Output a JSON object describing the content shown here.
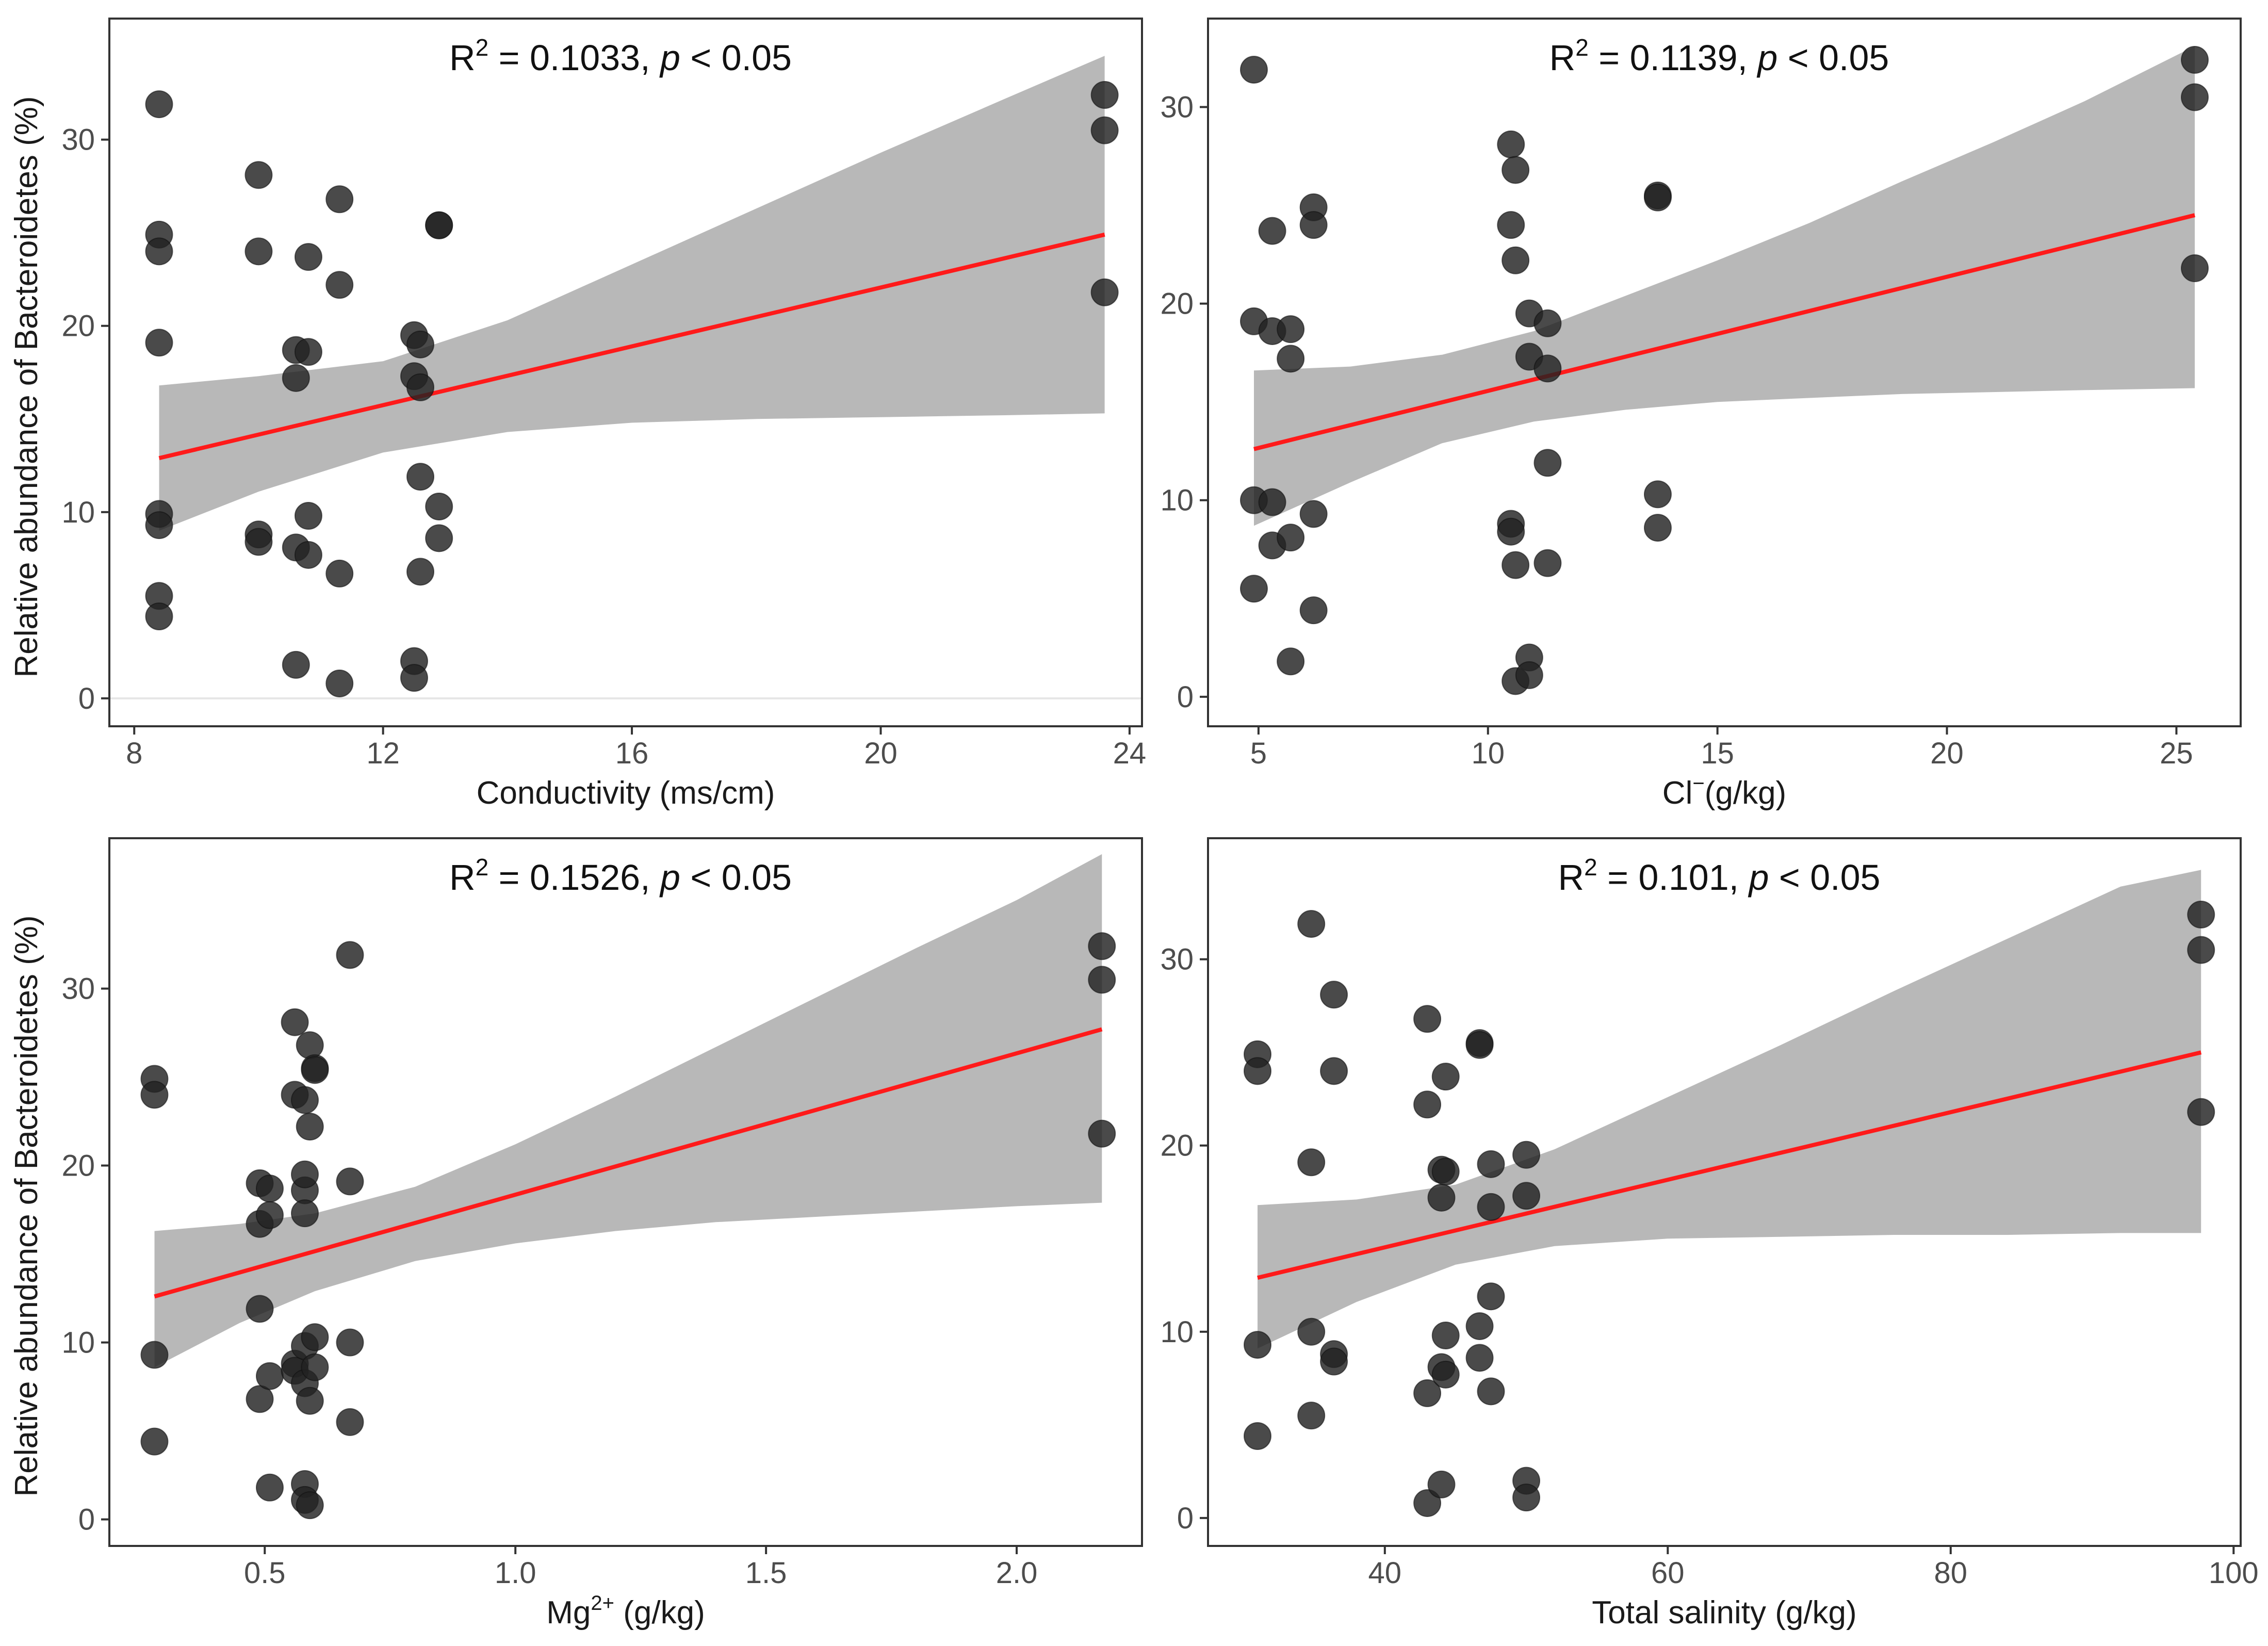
{
  "figure": {
    "y_axis_label": "Relative abundance of Bacteroidetes (%)"
  },
  "colors": {
    "point_fill": "#222222",
    "point_fill_light": "#5e5e5e",
    "fit_line": "#ff1a1a",
    "ci_band": "#b4b4b4",
    "panel_border": "#333333"
  },
  "chart_data": [
    {
      "type": "scatter",
      "panel": "top-left",
      "stat": {
        "r2_prefix": "R",
        "r2_sup": "2",
        "r2_value": "= 0.1033,",
        "p_symbol": "p",
        "p_value": "< 0.05"
      },
      "xlabel": {
        "main": "Conductivity (ms/cm)",
        "sup": ""
      },
      "ylabel": "Relative abundance of Bacteroidetes (%)",
      "xlim": [
        7.6,
        24.2
      ],
      "ylim": [
        -1.5,
        36.5
      ],
      "xticks": [
        8,
        12,
        16,
        20,
        24
      ],
      "xtick_labels": [
        "8",
        "12",
        "16",
        "20",
        "24"
      ],
      "yticks": [
        0,
        10,
        20,
        30
      ],
      "ytick_labels": [
        "0",
        "10",
        "20",
        "30"
      ],
      "fit": {
        "x": [
          8.4,
          23.6
        ],
        "y": [
          12.9,
          24.9
        ]
      },
      "ci": {
        "x": [
          8.4,
          10,
          12,
          14,
          16,
          18,
          20,
          22,
          23.6
        ],
        "lower": [
          9.0,
          11.1,
          13.2,
          14.3,
          14.8,
          15.0,
          15.1,
          15.2,
          15.3
        ],
        "upper": [
          16.8,
          17.3,
          18.1,
          20.3,
          23.3,
          26.3,
          29.3,
          32.2,
          34.5
        ]
      },
      "points": [
        {
          "x": 8.4,
          "y": 31.9
        },
        {
          "x": 8.4,
          "y": 24.9
        },
        {
          "x": 8.4,
          "y": 24.0
        },
        {
          "x": 8.4,
          "y": 19.1
        },
        {
          "x": 8.4,
          "y": 9.9
        },
        {
          "x": 8.4,
          "y": 9.3
        },
        {
          "x": 8.4,
          "y": 5.5
        },
        {
          "x": 8.4,
          "y": 4.4
        },
        {
          "x": 10.0,
          "y": 28.1
        },
        {
          "x": 10.0,
          "y": 24.0
        },
        {
          "x": 10.0,
          "y": 8.8
        },
        {
          "x": 10.0,
          "y": 8.4
        },
        {
          "x": 10.6,
          "y": 18.7
        },
        {
          "x": 10.6,
          "y": 17.2
        },
        {
          "x": 10.6,
          "y": 8.1
        },
        {
          "x": 10.6,
          "y": 1.8
        },
        {
          "x": 10.8,
          "y": 23.7
        },
        {
          "x": 10.8,
          "y": 18.6
        },
        {
          "x": 10.8,
          "y": 9.8
        },
        {
          "x": 10.8,
          "y": 7.7
        },
        {
          "x": 11.3,
          "y": 26.8
        },
        {
          "x": 11.3,
          "y": 22.2
        },
        {
          "x": 11.3,
          "y": 6.7
        },
        {
          "x": 11.3,
          "y": 0.8
        },
        {
          "x": 12.5,
          "y": 19.5
        },
        {
          "x": 12.5,
          "y": 17.3
        },
        {
          "x": 12.5,
          "y": 2.0
        },
        {
          "x": 12.5,
          "y": 1.1
        },
        {
          "x": 12.6,
          "y": 19.0
        },
        {
          "x": 12.6,
          "y": 16.7
        },
        {
          "x": 12.6,
          "y": 11.9
        },
        {
          "x": 12.6,
          "y": 6.8
        },
        {
          "x": 12.9,
          "y": 25.4
        },
        {
          "x": 12.9,
          "y": 25.4
        },
        {
          "x": 12.9,
          "y": 10.3
        },
        {
          "x": 12.9,
          "y": 8.6
        },
        {
          "x": 23.6,
          "y": 32.4
        },
        {
          "x": 23.6,
          "y": 30.5
        },
        {
          "x": 23.6,
          "y": 21.8
        }
      ]
    },
    {
      "type": "scatter",
      "panel": "top-right",
      "stat": {
        "r2_prefix": "R",
        "r2_sup": "2",
        "r2_value": "= 0.1139,",
        "p_symbol": "p",
        "p_value": "< 0.05"
      },
      "xlabel": {
        "main": "Cl",
        "sup": "−",
        "rest": "(g/kg)"
      },
      "ylabel": "",
      "xlim": [
        3.9,
        26.4
      ],
      "ylim": [
        -1.5,
        34.5
      ],
      "xticks": [
        5,
        10,
        15,
        20,
        25
      ],
      "xtick_labels": [
        "5",
        "10",
        "15",
        "20",
        "25"
      ],
      "yticks": [
        0,
        10,
        20,
        30
      ],
      "ytick_labels": [
        "0",
        "10",
        "20",
        "30"
      ],
      "fit": {
        "x": [
          4.9,
          25.4
        ],
        "y": [
          12.6,
          24.5
        ]
      },
      "ci": {
        "x": [
          4.9,
          7,
          9,
          11,
          13,
          15,
          17,
          19,
          21,
          23,
          25.4
        ],
        "lower": [
          8.7,
          10.9,
          12.9,
          14.0,
          14.6,
          15.0,
          15.2,
          15.4,
          15.5,
          15.6,
          15.7
        ],
        "upper": [
          16.6,
          16.8,
          17.4,
          18.6,
          20.4,
          22.2,
          24.1,
          26.2,
          28.2,
          30.3,
          33.1
        ]
      },
      "points": [
        {
          "x": 4.9,
          "y": 31.9
        },
        {
          "x": 4.9,
          "y": 19.1
        },
        {
          "x": 4.9,
          "y": 10.0
        },
        {
          "x": 4.9,
          "y": 5.5
        },
        {
          "x": 5.3,
          "y": 23.7
        },
        {
          "x": 5.3,
          "y": 18.6
        },
        {
          "x": 5.3,
          "y": 9.9
        },
        {
          "x": 5.3,
          "y": 7.7
        },
        {
          "x": 5.7,
          "y": 18.7
        },
        {
          "x": 5.7,
          "y": 17.2
        },
        {
          "x": 5.7,
          "y": 8.1
        },
        {
          "x": 5.7,
          "y": 1.8
        },
        {
          "x": 6.2,
          "y": 24.9
        },
        {
          "x": 6.2,
          "y": 24.0
        },
        {
          "x": 6.2,
          "y": 9.3
        },
        {
          "x": 6.2,
          "y": 4.4
        },
        {
          "x": 10.5,
          "y": 28.1
        },
        {
          "x": 10.5,
          "y": 24.0
        },
        {
          "x": 10.5,
          "y": 8.8
        },
        {
          "x": 10.5,
          "y": 8.4
        },
        {
          "x": 10.6,
          "y": 26.8
        },
        {
          "x": 10.6,
          "y": 22.2
        },
        {
          "x": 10.6,
          "y": 6.7
        },
        {
          "x": 10.6,
          "y": 0.8
        },
        {
          "x": 10.9,
          "y": 19.5
        },
        {
          "x": 10.9,
          "y": 17.3
        },
        {
          "x": 10.9,
          "y": 2.0
        },
        {
          "x": 10.9,
          "y": 1.1
        },
        {
          "x": 11.3,
          "y": 19.0
        },
        {
          "x": 11.3,
          "y": 16.7
        },
        {
          "x": 11.3,
          "y": 11.9
        },
        {
          "x": 11.3,
          "y": 6.8
        },
        {
          "x": 13.7,
          "y": 25.5
        },
        {
          "x": 13.7,
          "y": 25.4
        },
        {
          "x": 13.7,
          "y": 10.3
        },
        {
          "x": 13.7,
          "y": 8.6
        },
        {
          "x": 25.4,
          "y": 32.4
        },
        {
          "x": 25.4,
          "y": 30.5
        },
        {
          "x": 25.4,
          "y": 21.8
        }
      ]
    },
    {
      "type": "scatter",
      "panel": "bottom-left",
      "stat": {
        "r2_prefix": "R",
        "r2_sup": "2",
        "r2_value": "= 0.1526,",
        "p_symbol": "p",
        "p_value": "< 0.05"
      },
      "xlabel": {
        "main": "Mg",
        "sup": "2+",
        "rest": " (g/kg)"
      },
      "ylabel": "Relative abundance of Bacteroidetes (%)",
      "xlim": [
        0.19,
        2.25
      ],
      "ylim": [
        -1.5,
        38.5
      ],
      "xticks": [
        0.5,
        1.0,
        1.5,
        2.0
      ],
      "xtick_labels": [
        "0.5",
        "1.0",
        "1.5",
        "2.0"
      ],
      "yticks": [
        0,
        10,
        20,
        30
      ],
      "ytick_labels": [
        "0",
        "10",
        "20",
        "30"
      ],
      "fit": {
        "x": [
          0.28,
          2.17
        ],
        "y": [
          12.6,
          27.7
        ]
      },
      "ci": {
        "x": [
          0.28,
          0.45,
          0.6,
          0.8,
          1.0,
          1.2,
          1.4,
          1.6,
          1.8,
          2.0,
          2.17
        ],
        "lower": [
          8.6,
          11.1,
          12.9,
          14.6,
          15.6,
          16.3,
          16.8,
          17.1,
          17.4,
          17.7,
          17.9
        ],
        "upper": [
          16.3,
          16.7,
          17.3,
          18.8,
          21.2,
          23.9,
          26.7,
          29.5,
          32.3,
          35.0,
          37.6
        ]
      },
      "points": [
        {
          "x": 0.28,
          "y": 24.9
        },
        {
          "x": 0.28,
          "y": 24.0
        },
        {
          "x": 0.28,
          "y": 9.3
        },
        {
          "x": 0.28,
          "y": 4.4
        },
        {
          "x": 0.49,
          "y": 19.0
        },
        {
          "x": 0.49,
          "y": 16.7
        },
        {
          "x": 0.49,
          "y": 11.9
        },
        {
          "x": 0.49,
          "y": 6.8
        },
        {
          "x": 0.51,
          "y": 18.7
        },
        {
          "x": 0.51,
          "y": 17.2
        },
        {
          "x": 0.51,
          "y": 8.1
        },
        {
          "x": 0.51,
          "y": 1.8
        },
        {
          "x": 0.56,
          "y": 28.1
        },
        {
          "x": 0.56,
          "y": 24.0
        },
        {
          "x": 0.56,
          "y": 8.8
        },
        {
          "x": 0.56,
          "y": 8.4
        },
        {
          "x": 0.58,
          "y": 23.7
        },
        {
          "x": 0.58,
          "y": 18.6
        },
        {
          "x": 0.58,
          "y": 9.8
        },
        {
          "x": 0.58,
          "y": 7.7
        },
        {
          "x": 0.58,
          "y": 19.5
        },
        {
          "x": 0.58,
          "y": 17.3
        },
        {
          "x": 0.58,
          "y": 2.0
        },
        {
          "x": 0.58,
          "y": 1.1
        },
        {
          "x": 0.59,
          "y": 26.8
        },
        {
          "x": 0.59,
          "y": 22.2
        },
        {
          "x": 0.59,
          "y": 6.7
        },
        {
          "x": 0.59,
          "y": 0.8
        },
        {
          "x": 0.6,
          "y": 25.5
        },
        {
          "x": 0.6,
          "y": 25.4
        },
        {
          "x": 0.6,
          "y": 10.3
        },
        {
          "x": 0.6,
          "y": 8.6
        },
        {
          "x": 0.67,
          "y": 31.9
        },
        {
          "x": 0.67,
          "y": 19.1
        },
        {
          "x": 0.67,
          "y": 10.0
        },
        {
          "x": 0.67,
          "y": 5.5
        },
        {
          "x": 2.17,
          "y": 32.4
        },
        {
          "x": 2.17,
          "y": 30.5
        },
        {
          "x": 2.17,
          "y": 21.8
        }
      ]
    },
    {
      "type": "scatter",
      "panel": "bottom-right",
      "stat": {
        "r2_prefix": "R",
        "r2_sup": "2",
        "r2_value": "= 0.101,",
        "p_symbol": "p",
        "p_value": "< 0.05"
      },
      "xlabel": {
        "main": "Total salinity (g/kg)",
        "sup": ""
      },
      "ylabel": "",
      "xlim": [
        27.5,
        100.5
      ],
      "ylim": [
        -1.5,
        36.5
      ],
      "xticks": [
        40,
        60,
        80,
        100
      ],
      "xtick_labels": [
        "40",
        "60",
        "80",
        "100"
      ],
      "yticks": [
        0,
        10,
        20,
        30
      ],
      "ytick_labels": [
        "0",
        "10",
        "20",
        "30"
      ],
      "fit": {
        "x": [
          31.0,
          97.7
        ],
        "y": [
          12.9,
          25.0
        ]
      },
      "ci": {
        "x": [
          31.0,
          38,
          45,
          52,
          60,
          68,
          76,
          84,
          92,
          97.7
        ],
        "lower": [
          9.1,
          11.6,
          13.6,
          14.6,
          15.0,
          15.1,
          15.2,
          15.2,
          15.3,
          15.3
        ],
        "upper": [
          16.8,
          17.1,
          17.9,
          19.8,
          22.6,
          25.4,
          28.3,
          31.1,
          33.9,
          34.8
        ]
      },
      "points": [
        {
          "x": 31.0,
          "y": 24.9
        },
        {
          "x": 31.0,
          "y": 24.0
        },
        {
          "x": 31.0,
          "y": 9.3
        },
        {
          "x": 31.0,
          "y": 4.4
        },
        {
          "x": 34.8,
          "y": 31.9
        },
        {
          "x": 34.8,
          "y": 19.1
        },
        {
          "x": 34.8,
          "y": 10.0
        },
        {
          "x": 34.8,
          "y": 5.5
        },
        {
          "x": 36.4,
          "y": 28.1
        },
        {
          "x": 36.4,
          "y": 24.0
        },
        {
          "x": 36.4,
          "y": 8.8
        },
        {
          "x": 36.4,
          "y": 8.4
        },
        {
          "x": 43.0,
          "y": 26.8
        },
        {
          "x": 43.0,
          "y": 22.2
        },
        {
          "x": 43.0,
          "y": 6.7
        },
        {
          "x": 43.0,
          "y": 0.8
        },
        {
          "x": 44.0,
          "y": 18.7
        },
        {
          "x": 44.0,
          "y": 17.2
        },
        {
          "x": 44.0,
          "y": 8.1
        },
        {
          "x": 44.0,
          "y": 1.8
        },
        {
          "x": 44.3,
          "y": 23.7
        },
        {
          "x": 44.3,
          "y": 18.6
        },
        {
          "x": 44.3,
          "y": 9.8
        },
        {
          "x": 44.3,
          "y": 7.7
        },
        {
          "x": 46.7,
          "y": 25.5
        },
        {
          "x": 46.7,
          "y": 25.4
        },
        {
          "x": 46.7,
          "y": 10.3
        },
        {
          "x": 46.7,
          "y": 8.6
        },
        {
          "x": 47.5,
          "y": 19.0
        },
        {
          "x": 47.5,
          "y": 16.7
        },
        {
          "x": 47.5,
          "y": 11.9
        },
        {
          "x": 47.5,
          "y": 6.8
        },
        {
          "x": 50.0,
          "y": 19.5
        },
        {
          "x": 50.0,
          "y": 17.3
        },
        {
          "x": 50.0,
          "y": 2.0
        },
        {
          "x": 50.0,
          "y": 1.1
        },
        {
          "x": 97.7,
          "y": 32.4
        },
        {
          "x": 97.7,
          "y": 30.5
        },
        {
          "x": 97.7,
          "y": 21.8
        }
      ]
    }
  ]
}
